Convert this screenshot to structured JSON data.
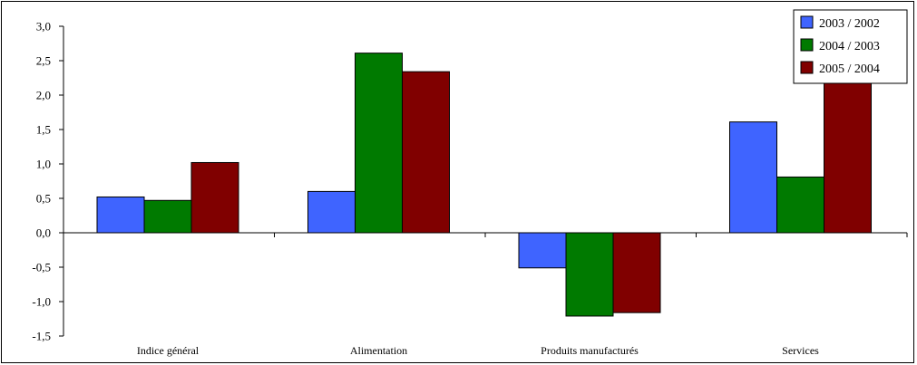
{
  "chart_data": {
    "type": "bar",
    "title": "",
    "xlabel": "",
    "ylabel": "",
    "categories": [
      "Indice général",
      "Alimentation",
      "Produits manufacturés",
      "Services"
    ],
    "series": [
      {
        "name": "2003 / 2002",
        "color": "#3f64ff",
        "values": [
          0.52,
          0.6,
          -0.51,
          1.61
        ]
      },
      {
        "name": "2004 / 2003",
        "color": "#007a00",
        "values": [
          0.47,
          2.61,
          -1.21,
          0.81
        ]
      },
      {
        "name": "2005 / 2004",
        "color": "#800000",
        "values": [
          1.02,
          2.34,
          -1.16,
          2.32
        ]
      }
    ],
    "ylim": [
      -1.5,
      3.0
    ],
    "yticks": [
      "3,0",
      "2,5",
      "2,0",
      "1,5",
      "1,0",
      "0,5",
      "0,0",
      "-0,5",
      "-1,0",
      "-1,5"
    ],
    "ytick_values": [
      3.0,
      2.5,
      2.0,
      1.5,
      1.0,
      0.5,
      0.0,
      -0.5,
      -1.0,
      -1.5
    ],
    "grid": false,
    "legend_position": "top-right"
  }
}
